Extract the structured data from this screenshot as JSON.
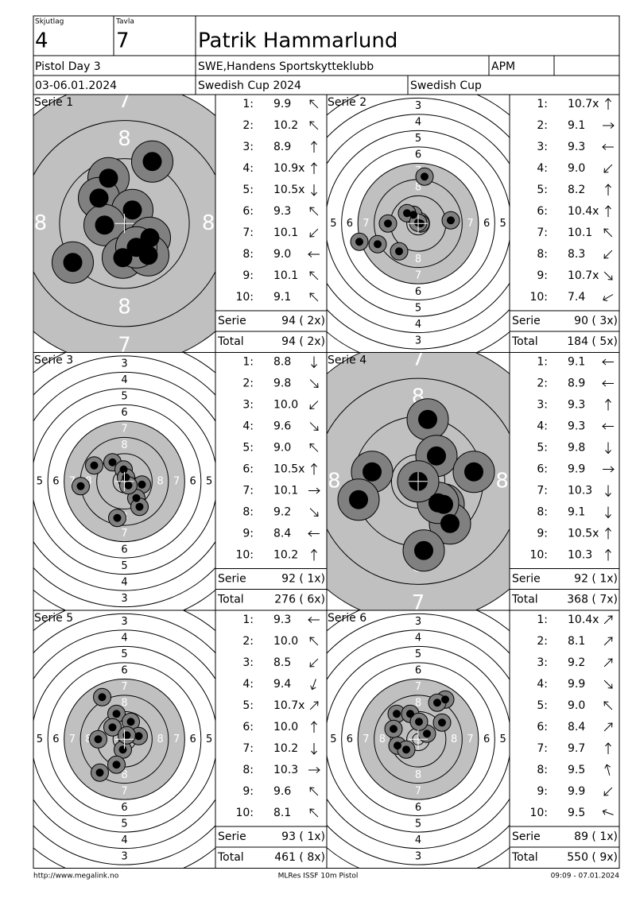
{
  "header": {
    "skjutlag_label": "Skjutlag",
    "skjutlag": "4",
    "tavla_label": "Tavla",
    "tavla": "7",
    "name": "Patrik Hammarlund",
    "event": "Pistol Day 3",
    "club": "SWE,Handens Sportskytteklubb",
    "class": "APM",
    "dates": "03-06.01.2024",
    "competition": "Swedish Cup 2024",
    "cup": "Swedish Cup"
  },
  "series": [
    {
      "title": "Serie 1",
      "ring_labels": [
        "7",
        "8"
      ],
      "shots": [
        {
          "index": "1:",
          "score": "9.9"
        },
        {
          "index": "2:",
          "score": "10.2"
        },
        {
          "index": "3:",
          "score": "8.9"
        },
        {
          "index": "4:",
          "score": "10.9x"
        },
        {
          "index": "5:",
          "score": "10.5x"
        },
        {
          "index": "6:",
          "score": "9.3"
        },
        {
          "index": "7:",
          "score": "10.1"
        },
        {
          "index": "8:",
          "score": "9.0"
        },
        {
          "index": "9:",
          "score": "10.1"
        },
        {
          "index": "10:",
          "score": "9.1"
        }
      ],
      "serie_label": "Serie",
      "serie_score": "94 ( 2x)",
      "total_label": "Total",
      "total_score": "94 ( 2x)"
    },
    {
      "title": "Serie 2",
      "ring_labels": [
        "3",
        "4",
        "5",
        "6",
        "7",
        "8"
      ],
      "shots": [
        {
          "index": "1:",
          "score": "10.7x"
        },
        {
          "index": "2:",
          "score": "9.1"
        },
        {
          "index": "3:",
          "score": "9.3"
        },
        {
          "index": "4:",
          "score": "9.0"
        },
        {
          "index": "5:",
          "score": "8.2"
        },
        {
          "index": "6:",
          "score": "10.4x"
        },
        {
          "index": "7:",
          "score": "10.1"
        },
        {
          "index": "8:",
          "score": "8.3"
        },
        {
          "index": "9:",
          "score": "10.7x"
        },
        {
          "index": "10:",
          "score": "7.4"
        }
      ],
      "serie_label": "Serie",
      "serie_score": "90 ( 3x)",
      "total_label": "Total",
      "total_score": "184 ( 5x)"
    },
    {
      "title": "Serie 3",
      "ring_labels": [
        "3",
        "4",
        "5",
        "6",
        "7",
        "8"
      ],
      "shots": [
        {
          "index": "1:",
          "score": "8.8"
        },
        {
          "index": "2:",
          "score": "9.8"
        },
        {
          "index": "3:",
          "score": "10.0"
        },
        {
          "index": "4:",
          "score": "9.6"
        },
        {
          "index": "5:",
          "score": "9.0"
        },
        {
          "index": "6:",
          "score": "10.5x"
        },
        {
          "index": "7:",
          "score": "10.1"
        },
        {
          "index": "8:",
          "score": "9.2"
        },
        {
          "index": "9:",
          "score": "8.4"
        },
        {
          "index": "10:",
          "score": "10.2"
        }
      ],
      "serie_label": "Serie",
      "serie_score": "92 ( 1x)",
      "total_label": "Total",
      "total_score": "276 ( 6x)"
    },
    {
      "title": "Serie 4",
      "ring_labels": [
        "7",
        "8"
      ],
      "shots": [
        {
          "index": "1:",
          "score": "9.1"
        },
        {
          "index": "2:",
          "score": "8.9"
        },
        {
          "index": "3:",
          "score": "9.3"
        },
        {
          "index": "4:",
          "score": "9.3"
        },
        {
          "index": "5:",
          "score": "9.8"
        },
        {
          "index": "6:",
          "score": "9.9"
        },
        {
          "index": "7:",
          "score": "10.3"
        },
        {
          "index": "8:",
          "score": "9.1"
        },
        {
          "index": "9:",
          "score": "10.5x"
        },
        {
          "index": "10:",
          "score": "10.3"
        }
      ],
      "serie_label": "Serie",
      "serie_score": "92 ( 1x)",
      "total_label": "Total",
      "total_score": "368 ( 7x)"
    },
    {
      "title": "Serie 5",
      "ring_labels": [
        "3",
        "4",
        "5",
        "6",
        "7",
        "8"
      ],
      "shots": [
        {
          "index": "1:",
          "score": "9.3"
        },
        {
          "index": "2:",
          "score": "10.0"
        },
        {
          "index": "3:",
          "score": "8.5"
        },
        {
          "index": "4:",
          "score": "9.4"
        },
        {
          "index": "5:",
          "score": "10.7x"
        },
        {
          "index": "6:",
          "score": "10.0"
        },
        {
          "index": "7:",
          "score": "10.2"
        },
        {
          "index": "8:",
          "score": "10.3"
        },
        {
          "index": "9:",
          "score": "9.6"
        },
        {
          "index": "10:",
          "score": "8.1"
        }
      ],
      "serie_label": "Serie",
      "serie_score": "93 ( 1x)",
      "total_label": "Total",
      "total_score": "461 ( 8x)"
    },
    {
      "title": "Serie 6",
      "ring_labels": [
        "3",
        "4",
        "5",
        "6",
        "7",
        "8"
      ],
      "shots": [
        {
          "index": "1:",
          "score": "10.4x"
        },
        {
          "index": "2:",
          "score": "8.1"
        },
        {
          "index": "3:",
          "score": "9.2"
        },
        {
          "index": "4:",
          "score": "9.9"
        },
        {
          "index": "5:",
          "score": "9.0"
        },
        {
          "index": "6:",
          "score": "8.4"
        },
        {
          "index": "7:",
          "score": "9.7"
        },
        {
          "index": "8:",
          "score": "9.5"
        },
        {
          "index": "9:",
          "score": "9.9"
        },
        {
          "index": "10:",
          "score": "9.5"
        }
      ],
      "serie_label": "Serie",
      "serie_score": "89 ( 1x)",
      "total_label": "Total",
      "total_score": "550 ( 9x)"
    }
  ],
  "footer": {
    "url": "http://www.megalink.no",
    "program": "MLRes ISSF 10m Pistol",
    "printed": "09:09 - 07.01.2024"
  }
}
